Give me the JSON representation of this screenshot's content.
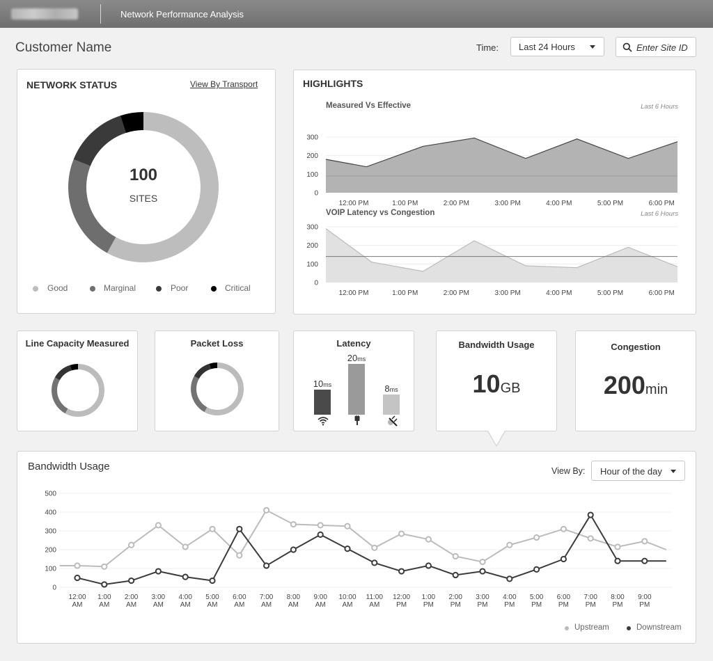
{
  "header": {
    "logo_text": "HUGHES",
    "app_title": "Network Performance Analysis"
  },
  "toolbar": {
    "customer_name": "Customer Name",
    "time_label": "Time:",
    "time_value": "Last 24 Hours",
    "site_search_placeholder": "Enter Site ID"
  },
  "network_status": {
    "title": "NETWORK STATUS",
    "link": "View By Transport",
    "total": "100",
    "total_label": "SITES",
    "chart_data": {
      "type": "pie",
      "title": "",
      "labels": [
        "Good",
        "Marginal",
        "Poor",
        "Critical"
      ],
      "values": [
        58,
        23,
        14,
        5
      ],
      "colors": [
        "#bdbdbd",
        "#6e6e6e",
        "#3a3a3a",
        "#000000"
      ]
    }
  },
  "highlights": {
    "title": "HIGHLIGHTS",
    "chart1_title": "Measured Vs Effective",
    "chart1_period": "Last 6 Hours",
    "chart2_title": "VOIP Latency vs Congestion",
    "chart2_period": "Last 6 Hours",
    "chart_data": [
      {
        "type": "area",
        "title": "Measured Vs Effective",
        "x": [
          "12:00 PM",
          "1:00 PM",
          "2:00 PM",
          "3:00 PM",
          "4:00 PM",
          "5:00 PM",
          "6:00 PM"
        ],
        "ylim": [
          0,
          300
        ],
        "yticks": [
          0,
          100,
          200,
          300
        ],
        "series": [
          {
            "points": [
              [
                0,
                180
              ],
              [
                0.25,
                140
              ],
              [
                1.35,
                250
              ],
              [
                2.35,
                295
              ],
              [
                3.35,
                185
              ],
              [
                4.35,
                290
              ],
              [
                5.35,
                185
              ],
              [
                6.35,
                275
              ]
            ]
          },
          {
            "points": [
              [
                0,
                90
              ],
              [
                6.35,
                90
              ]
            ]
          }
        ]
      },
      {
        "type": "area",
        "title": "VOIP Latency vs Congestion",
        "x": [
          "12:00 PM",
          "1:00 PM",
          "2:00 PM",
          "3:00 PM",
          "4:00 PM",
          "5:00 PM",
          "6:00 PM"
        ],
        "ylim": [
          0,
          300
        ],
        "yticks": [
          0,
          100,
          200,
          300
        ],
        "series": [
          {
            "points": [
              [
                0,
                290
              ],
              [
                0.35,
                110
              ],
              [
                1.35,
                60
              ],
              [
                2.35,
                225
              ],
              [
                3.35,
                90
              ],
              [
                4.35,
                80
              ],
              [
                5.35,
                190
              ],
              [
                6.35,
                85
              ]
            ]
          },
          {
            "points": [
              [
                0,
                140
              ],
              [
                6.35,
                140
              ]
            ]
          }
        ]
      }
    ]
  },
  "kpis": {
    "line_capacity": {
      "title": "Line Capacity Measured",
      "chart_data": {
        "type": "pie",
        "labels": [
          "Good",
          "Marginal",
          "Poor",
          "Critical"
        ],
        "values": [
          58,
          25,
          12,
          5
        ]
      }
    },
    "packet_loss": {
      "title": "Packet Loss",
      "chart_data": {
        "type": "pie",
        "labels": [
          "Good",
          "Marginal",
          "Poor",
          "Critical"
        ],
        "values": [
          58,
          25,
          12,
          5
        ]
      }
    },
    "latency": {
      "title": "Latency",
      "unit": "ms",
      "chart_data": {
        "type": "bar",
        "categories": [
          "wifi",
          "wired",
          "satellite"
        ],
        "values": [
          10,
          20,
          8
        ],
        "colors": [
          "#4a4a4a",
          "#9a9a9a",
          "#c4c4c4"
        ]
      },
      "labels": [
        "10",
        "20",
        "8"
      ]
    },
    "bandwidth": {
      "title": "Bandwidth Usage",
      "value": "10",
      "unit": "GB"
    },
    "congestion": {
      "title": "Congestion",
      "value": "200",
      "unit": "min"
    }
  },
  "bandwidth_usage": {
    "title": "Bandwidth Usage",
    "view_by_label": "View By:",
    "view_by_value": "Hour of the day",
    "legend": {
      "upstream": "Upstream",
      "downstream": "Downstream"
    },
    "chart_data": {
      "type": "line",
      "title": "Bandwidth Usage",
      "categories": [
        "12:00 AM",
        "1:00 AM",
        "2:00 AM",
        "3:00 AM",
        "4:00 AM",
        "5:00 AM",
        "6:00 AM",
        "7:00 AM",
        "8:00 AM",
        "9:00 AM",
        "10:00 AM",
        "11:00 AM",
        "12:00 PM",
        "1:00 PM",
        "2:00 PM",
        "3:00 PM",
        "4:00 PM",
        "5:00 PM",
        "6:00 PM",
        "7:00 PM",
        "8:00 PM",
        "9:00 PM"
      ],
      "x_start": -0.65,
      "x_end": 21.8,
      "ylim": [
        0,
        500
      ],
      "yticks": [
        0,
        100,
        200,
        300,
        400,
        500
      ],
      "series": [
        {
          "name": "Upstream",
          "color": "#bbbbbb",
          "start_value": 115,
          "end_value": 200,
          "values": [
            115,
            110,
            225,
            330,
            215,
            310,
            170,
            410,
            335,
            330,
            325,
            210,
            285,
            255,
            165,
            135,
            225,
            265,
            310,
            260,
            215,
            245
          ]
        },
        {
          "name": "Downstream",
          "color": "#3b3b3b",
          "start_value": null,
          "end_value": 140,
          "values": [
            50,
            15,
            35,
            85,
            55,
            35,
            310,
            115,
            200,
            280,
            205,
            130,
            85,
            115,
            65,
            85,
            45,
            95,
            150,
            385,
            140,
            140
          ]
        }
      ]
    }
  }
}
